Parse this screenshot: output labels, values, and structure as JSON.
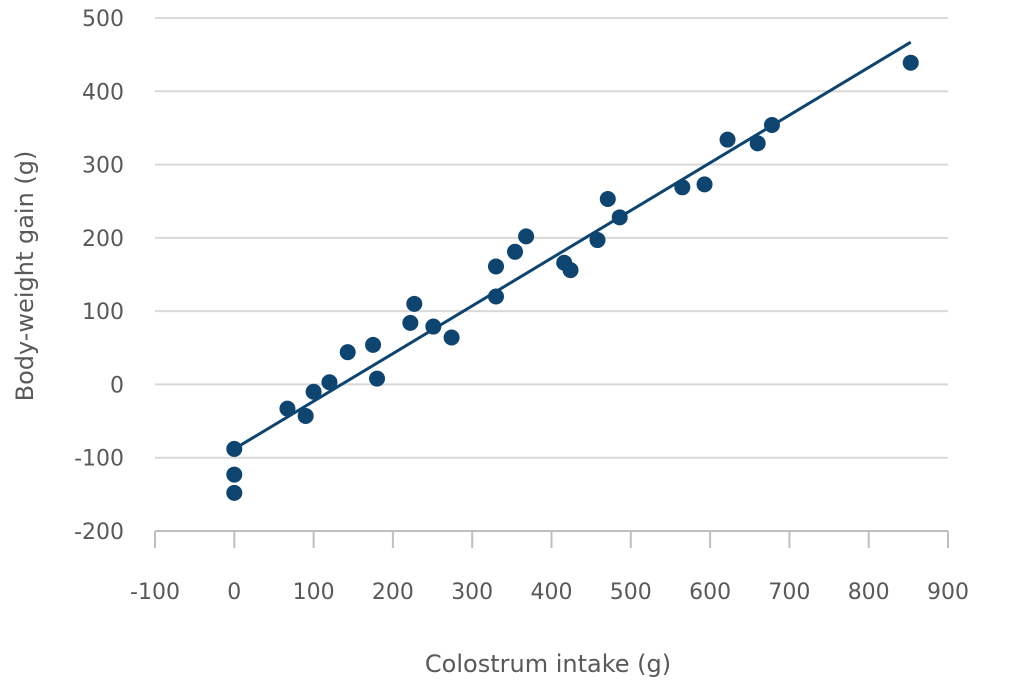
{
  "chart_data": {
    "type": "scatter",
    "title": "",
    "xlabel": "Colostrum intake (g)",
    "ylabel": "Body-weight gain (g)",
    "xlim": [
      -100,
      900
    ],
    "ylim": [
      -200,
      500
    ],
    "x_ticks": [
      "-100",
      "0",
      "100",
      "200",
      "300",
      "400",
      "500",
      "600",
      "700",
      "800",
      "900"
    ],
    "y_ticks": [
      "500",
      "400",
      "300",
      "200",
      "100",
      "0",
      "-100",
      "-200"
    ],
    "grid": true,
    "legend": "none",
    "marker_color": "#0E4470",
    "series": [
      {
        "points": [
          [
            0,
            -88
          ],
          [
            0,
            -123
          ],
          [
            0,
            -148
          ],
          [
            67,
            -33
          ],
          [
            90,
            -43
          ],
          [
            100,
            -10
          ],
          [
            120,
            3
          ],
          [
            143,
            44
          ],
          [
            175,
            54
          ],
          [
            180,
            8
          ],
          [
            222,
            84
          ],
          [
            227,
            110
          ],
          [
            251,
            79
          ],
          [
            274,
            64
          ],
          [
            330,
            120
          ],
          [
            330,
            161
          ],
          [
            354,
            181
          ],
          [
            368,
            202
          ],
          [
            416,
            166
          ],
          [
            424,
            156
          ],
          [
            458,
            197
          ],
          [
            471,
            253
          ],
          [
            486,
            228
          ],
          [
            565,
            269
          ],
          [
            593,
            273
          ],
          [
            622,
            334
          ],
          [
            660,
            329
          ],
          [
            678,
            354
          ],
          [
            853,
            439
          ]
        ]
      }
    ],
    "trendline": {
      "type": "linear",
      "from": [
        0,
        -88
      ],
      "to": [
        853,
        467
      ]
    }
  }
}
